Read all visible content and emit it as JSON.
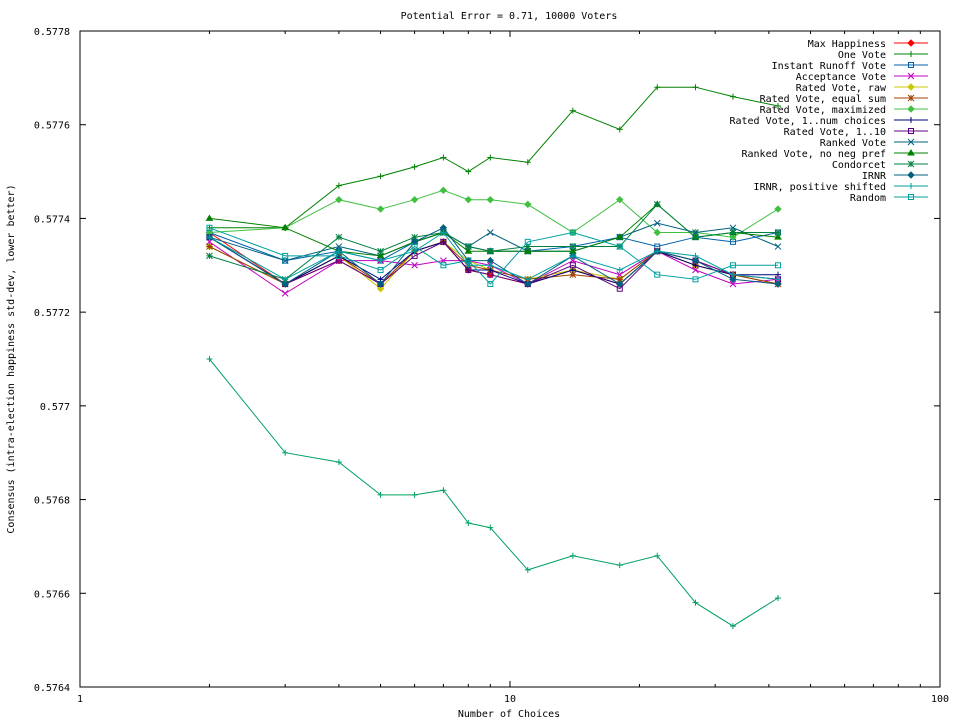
{
  "chart_data": {
    "type": "line",
    "title": "Potential Error = 0.71, 10000 Voters",
    "xlabel": "Number of Choices",
    "ylabel": "Consensus (intra-election happiness std-dev, lower better)",
    "xscale": "log",
    "xlim": [
      1,
      100
    ],
    "ylim": [
      0.5764,
      0.5778
    ],
    "x_ticks": [
      "1",
      "10",
      "100"
    ],
    "x_tick_values": [
      1,
      10,
      100
    ],
    "y_ticks": [
      "0.5764",
      "0.5766",
      "0.5768",
      "0.577",
      "0.5772",
      "0.5774",
      "0.5776",
      "0.5778"
    ],
    "y_tick_values": [
      0.5764,
      0.5766,
      0.5768,
      0.577,
      0.5772,
      0.5774,
      0.5776,
      0.5778
    ],
    "grid": false,
    "legend_position": "top-right",
    "x": [
      2,
      3,
      4,
      5,
      6,
      7,
      8,
      9,
      11,
      14,
      18,
      22,
      27,
      33,
      42
    ],
    "series": [
      {
        "name": "Max Happiness",
        "color": "#ff0000",
        "marker": "diamond",
        "values": [
          0.57737,
          0.57726,
          0.57731,
          0.57726,
          0.57733,
          0.57735,
          0.57729,
          0.57728,
          0.57726,
          0.57729,
          0.57726,
          0.57733,
          0.57731,
          0.57728,
          0.57726
        ]
      },
      {
        "name": "One Vote",
        "color": "#008000",
        "marker": "plus",
        "values": [
          0.57738,
          0.57738,
          0.57747,
          0.57749,
          0.57751,
          0.57753,
          0.5775,
          0.57753,
          0.57752,
          0.57763,
          0.57759,
          0.57768,
          0.57768,
          0.57766,
          0.57764
        ]
      },
      {
        "name": "Instant Runoff Vote",
        "color": "#0060ad",
        "marker": "square",
        "values": [
          0.57737,
          0.57731,
          0.57733,
          0.57731,
          0.57735,
          0.57737,
          0.57734,
          0.57733,
          0.57733,
          0.57734,
          0.57736,
          0.57734,
          0.57736,
          0.57735,
          0.57737
        ]
      },
      {
        "name": "Acceptance Vote",
        "color": "#c000c0",
        "marker": "cross",
        "values": [
          0.57735,
          0.57724,
          0.57731,
          0.57731,
          0.5773,
          0.57731,
          0.57731,
          0.5773,
          0.57726,
          0.57731,
          0.57728,
          0.57733,
          0.57729,
          0.57726,
          0.57727
        ]
      },
      {
        "name": "Rated Vote, raw",
        "color": "#c8c800",
        "marker": "diamond",
        "values": [
          0.57734,
          0.57726,
          0.57732,
          0.57725,
          0.57733,
          0.57735,
          0.57731,
          0.57729,
          0.57727,
          0.57729,
          0.57727,
          0.57733,
          0.5773,
          0.57728,
          0.57726
        ]
      },
      {
        "name": "Rated Vote, equal sum",
        "color": "#a04000",
        "marker": "asterisk",
        "values": [
          0.57734,
          0.57726,
          0.57732,
          0.57726,
          0.57733,
          0.57735,
          0.5773,
          0.57729,
          0.57727,
          0.57728,
          0.57727,
          0.57733,
          0.5773,
          0.57728,
          0.57726
        ]
      },
      {
        "name": "Rated Vote, maximized",
        "color": "#40c040",
        "marker": "diamond",
        "values": [
          0.57737,
          0.57738,
          0.57744,
          0.57742,
          0.57744,
          0.57746,
          0.57744,
          0.57744,
          0.57743,
          0.57737,
          0.57744,
          0.57737,
          0.57737,
          0.57736,
          0.57742
        ]
      },
      {
        "name": "Rated Vote, 1..num choices",
        "color": "#000080",
        "marker": "plus",
        "values": [
          0.57736,
          0.57726,
          0.57732,
          0.57727,
          0.57733,
          0.57735,
          0.57729,
          0.57729,
          0.57726,
          0.57729,
          0.57726,
          0.57733,
          0.5773,
          0.57728,
          0.57728
        ]
      },
      {
        "name": "Rated Vote, 1..10",
        "color": "#600080",
        "marker": "square",
        "values": [
          0.57736,
          0.57726,
          0.57731,
          0.57726,
          0.57732,
          0.57735,
          0.57729,
          0.57728,
          0.57726,
          0.5773,
          0.57725,
          0.57733,
          0.57731,
          0.57728,
          0.57727
        ]
      },
      {
        "name": "Ranked Vote",
        "color": "#006080",
        "marker": "cross",
        "values": [
          0.57736,
          0.57731,
          0.57734,
          0.57732,
          0.57735,
          0.57737,
          0.57734,
          0.57737,
          0.57733,
          0.57733,
          0.57736,
          0.57739,
          0.57737,
          0.57738,
          0.57734
        ]
      },
      {
        "name": "Ranked Vote, no neg pref",
        "color": "#008000",
        "marker": "triangle",
        "values": [
          0.5774,
          0.57738,
          0.57733,
          0.57732,
          0.57735,
          0.57737,
          0.57733,
          0.57733,
          0.57733,
          0.57733,
          0.57736,
          0.57743,
          0.57736,
          0.57737,
          0.57736
        ]
      },
      {
        "name": "Condorcet",
        "color": "#008040",
        "marker": "asterisk",
        "values": [
          0.57732,
          0.57727,
          0.57736,
          0.57733,
          0.57736,
          0.57737,
          0.57734,
          0.57733,
          0.57734,
          0.57734,
          0.57734,
          0.57743,
          0.57736,
          0.57737,
          0.57737
        ]
      },
      {
        "name": "IRNR",
        "color": "#006080",
        "marker": "diamond",
        "values": [
          0.57736,
          0.57726,
          0.57733,
          0.57726,
          0.57735,
          0.57738,
          0.57731,
          0.57731,
          0.57726,
          0.57732,
          0.57726,
          0.57733,
          0.57731,
          0.57727,
          0.57726
        ]
      },
      {
        "name": "IRNR, positive shifted",
        "color": "#00a0a0",
        "marker": "plus",
        "values": [
          0.57736,
          0.57727,
          0.57733,
          0.57731,
          0.57733,
          0.57737,
          0.5773,
          0.5773,
          0.57727,
          0.57732,
          0.57729,
          0.57733,
          0.57732,
          0.57728,
          0.57727
        ]
      },
      {
        "name": "Random",
        "color": "#00a0a0",
        "marker": "square",
        "values": [
          0.57738,
          0.57732,
          0.57732,
          0.57729,
          0.57734,
          0.5773,
          0.57731,
          0.57726,
          0.57735,
          0.57737,
          0.57734,
          0.57728,
          0.57727,
          0.5773,
          0.5773
        ]
      },
      {
        "name": "",
        "color": "#00a060",
        "marker": "plus",
        "values": [
          0.5771,
          0.5769,
          0.57688,
          0.57681,
          0.57681,
          0.57682,
          0.57675,
          0.57674,
          0.57665,
          0.57668,
          0.57666,
          0.57668,
          0.57658,
          0.57653,
          0.57659
        ]
      }
    ]
  }
}
